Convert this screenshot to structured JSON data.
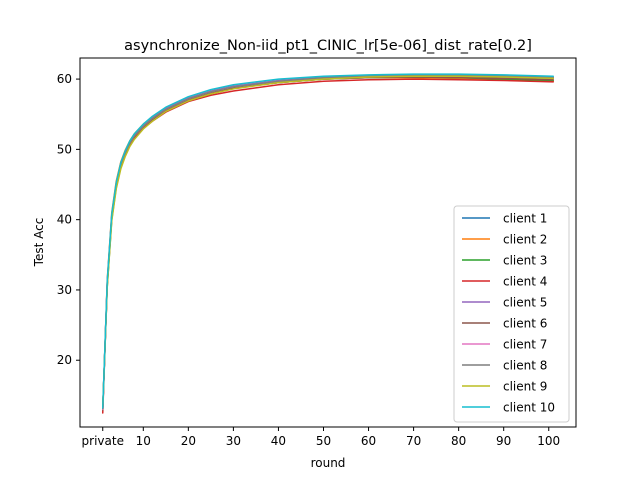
{
  "chart_data": {
    "type": "line",
    "title": "asynchronize_Non-iid_pt1_CINIC_lr[5e-06]_dist_rate[0.2]",
    "xlabel": "round",
    "ylabel": "Test Acc",
    "xlim": [
      -4.05,
      106.05
    ],
    "ylim": [
      10.5,
      63.0
    ],
    "xticks": [
      {
        "value": 1,
        "label": "private"
      },
      {
        "value": 10,
        "label": "10"
      },
      {
        "value": 20,
        "label": "20"
      },
      {
        "value": 30,
        "label": "30"
      },
      {
        "value": 40,
        "label": "40"
      },
      {
        "value": 50,
        "label": "50"
      },
      {
        "value": 60,
        "label": "60"
      },
      {
        "value": 70,
        "label": "70"
      },
      {
        "value": 80,
        "label": "80"
      },
      {
        "value": 90,
        "label": "90"
      },
      {
        "value": 100,
        "label": "100"
      }
    ],
    "yticks": [
      20,
      30,
      40,
      50,
      60
    ],
    "grid": false,
    "legend_position": "lower-right",
    "x": [
      1,
      2,
      3,
      4,
      5,
      6,
      7,
      8,
      10,
      12,
      15,
      20,
      25,
      30,
      40,
      50,
      60,
      70,
      80,
      90,
      101
    ],
    "series": [
      {
        "name": "client 1",
        "color": "#1f77b4",
        "values": [
          13.0,
          31.0,
          40.5,
          45.0,
          47.8,
          49.5,
          50.9,
          51.9,
          53.3,
          54.4,
          55.7,
          57.2,
          58.2,
          58.9,
          59.7,
          60.2,
          60.4,
          60.5,
          60.4,
          60.3,
          60.1
        ]
      },
      {
        "name": "client 2",
        "color": "#ff7f0e",
        "values": [
          12.8,
          31.5,
          41.0,
          45.5,
          48.2,
          49.9,
          51.2,
          52.2,
          53.6,
          54.6,
          55.9,
          57.3,
          58.2,
          58.8,
          59.6,
          60.0,
          60.2,
          60.2,
          60.1,
          59.9,
          59.7
        ]
      },
      {
        "name": "client 3",
        "color": "#2ca02c",
        "values": [
          13.2,
          30.5,
          40.0,
          44.6,
          47.4,
          49.2,
          50.6,
          51.6,
          53.1,
          54.2,
          55.5,
          57.0,
          58.0,
          58.7,
          59.5,
          60.0,
          60.2,
          60.3,
          60.2,
          60.0,
          59.8
        ]
      },
      {
        "name": "client 4",
        "color": "#d62728",
        "values": [
          12.5,
          30.8,
          40.3,
          44.9,
          47.6,
          49.4,
          50.7,
          51.7,
          53.0,
          54.0,
          55.3,
          56.8,
          57.7,
          58.3,
          59.2,
          59.7,
          59.9,
          60.0,
          59.9,
          59.8,
          59.6
        ]
      },
      {
        "name": "client 5",
        "color": "#9467bd",
        "values": [
          13.1,
          31.2,
          40.6,
          45.1,
          47.9,
          49.6,
          51.0,
          52.0,
          53.4,
          54.5,
          55.8,
          57.3,
          58.3,
          59.0,
          59.8,
          60.3,
          60.5,
          60.6,
          60.6,
          60.5,
          60.3
        ]
      },
      {
        "name": "client 6",
        "color": "#8c564b",
        "values": [
          12.9,
          30.9,
          40.4,
          45.0,
          47.7,
          49.5,
          50.8,
          51.8,
          53.2,
          54.3,
          55.6,
          57.1,
          58.0,
          58.7,
          59.5,
          60.0,
          60.2,
          60.3,
          60.2,
          60.1,
          59.9
        ]
      },
      {
        "name": "client 7",
        "color": "#e377c2",
        "values": [
          13.0,
          31.1,
          40.5,
          45.1,
          47.8,
          49.6,
          50.9,
          51.9,
          53.3,
          54.4,
          55.7,
          57.2,
          58.2,
          58.9,
          59.7,
          60.2,
          60.4,
          60.5,
          60.5,
          60.4,
          60.2
        ]
      },
      {
        "name": "client 8",
        "color": "#7f7f7f",
        "values": [
          13.1,
          31.0,
          40.4,
          45.0,
          47.8,
          49.5,
          50.9,
          51.9,
          53.3,
          54.4,
          55.7,
          57.2,
          58.2,
          58.9,
          59.7,
          60.2,
          60.4,
          60.5,
          60.5,
          60.4,
          60.2
        ]
      },
      {
        "name": "client 9",
        "color": "#bcbd22",
        "values": [
          13.3,
          30.4,
          39.8,
          44.4,
          47.2,
          49.0,
          50.4,
          51.4,
          52.9,
          54.0,
          55.4,
          56.9,
          57.9,
          58.6,
          59.5,
          60.0,
          60.3,
          60.4,
          60.4,
          60.3,
          60.1
        ]
      },
      {
        "name": "client 10",
        "color": "#17becf",
        "values": [
          13.2,
          31.3,
          40.8,
          45.3,
          48.1,
          49.8,
          51.2,
          52.2,
          53.6,
          54.7,
          56.0,
          57.5,
          58.5,
          59.2,
          60.0,
          60.4,
          60.6,
          60.7,
          60.7,
          60.6,
          60.4
        ]
      }
    ]
  }
}
